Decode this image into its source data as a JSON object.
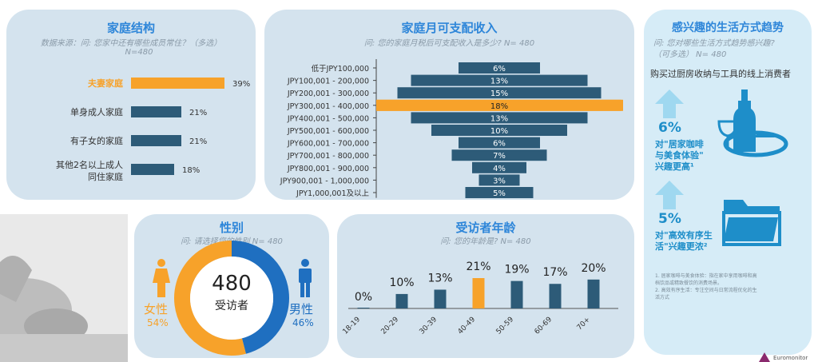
{
  "household": {
    "title": "家庭结构",
    "subtitle": "数据来源：问: 您家中还有哪些成员常住？（多选）",
    "n": "N=480",
    "chart_data": {
      "type": "bar",
      "categories": [
        "夫妻家庭",
        "单身成人家庭",
        "有子女的家庭",
        "其他2名以上成人同住家庭"
      ],
      "values": [
        39,
        21,
        21,
        18
      ],
      "labels": [
        "39%",
        "21%",
        "21%",
        "18%"
      ],
      "highlight_index": 0
    }
  },
  "income": {
    "title": "家庭月可支配收入",
    "subtitle": "问: 您的家庭月税后可支配收入是多少? N= 480",
    "chart_data": {
      "type": "bar",
      "orientation": "centered-horizontal",
      "categories": [
        "低于JPY100,000",
        "JPY100,001 - 200,000",
        "JPY200,001 - 300,000",
        "JPY300,001 - 400,000",
        "JPY400,001 - 500,000",
        "JPY500,001 - 600,000",
        "JPY600,001 - 700,000",
        "JPY700,001 - 800,000",
        "JPY800,001 - 900,000",
        "JPY900,001 - 1,000,000",
        "JPY1,000,001及以上"
      ],
      "values": [
        6,
        13,
        15,
        18,
        13,
        10,
        6,
        7,
        4,
        3,
        5
      ],
      "labels": [
        "6%",
        "13%",
        "15%",
        "18%",
        "13%",
        "10%",
        "6%",
        "7%",
        "4%",
        "3%",
        "5%"
      ],
      "highlight_index": 3
    }
  },
  "gender": {
    "title": "性别",
    "subtitle": "问: 请选择您的性别 N= 480",
    "center_number": "480",
    "center_label": "受访者",
    "female_label": "女性",
    "female_pct": "54%",
    "male_label": "男性",
    "male_pct": "46%",
    "chart_data": {
      "type": "pie",
      "categories": [
        "女性",
        "男性"
      ],
      "values": [
        54,
        46
      ]
    }
  },
  "age": {
    "title": "受访者年龄",
    "subtitle": "问: 您的年龄是? N= 480",
    "chart_data": {
      "type": "bar",
      "categories": [
        "18-19",
        "20-29",
        "30-39",
        "40-49",
        "50-59",
        "60-69",
        "70+"
      ],
      "values": [
        0,
        10,
        13,
        21,
        19,
        17,
        20
      ],
      "labels": [
        "0%",
        "10%",
        "13%",
        "21%",
        "19%",
        "17%",
        "20%"
      ],
      "highlight_index": 3
    }
  },
  "lifestyle": {
    "title": "感兴趣的生活方式趋势",
    "subtitle_1": "问: 您对哪些生活方式趋势感兴趣?",
    "subtitle_2": "（可多选） N= 480",
    "heading": "购买过厨房收纳与工具的线上消费者",
    "item1_pct": "6%",
    "item1_line1": "对\"居家咖啡",
    "item1_line2": "与美食体验\"",
    "item1_line3": "兴趣更高¹",
    "item2_pct": "5%",
    "item2_line1": "对\"高效有序生",
    "item2_line2": "活\"兴趣更浓²",
    "note1_a": "1. 居家咖啡与美食体验：指在家中享用咖啡和高",
    "note1_b": "档饮品或精致餐饮的消费场景。",
    "note2_a": "2. 高效有序生活：专注空间与日常流程优化的生",
    "note2_b": "活方式"
  },
  "logo": {
    "text": "Euromonitor"
  },
  "colors": {
    "panel_bg": "#d4e3ee",
    "bar": "#2d5b78",
    "highlight": "#f7a22a",
    "title": "#2e86d9",
    "male": "#1f6fc0",
    "female": "#f7a22a"
  }
}
